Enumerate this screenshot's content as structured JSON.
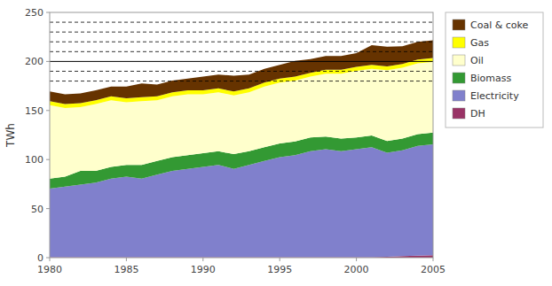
{
  "chart_data": {
    "type": "area",
    "stacked": true,
    "ylabel": "TWh",
    "x": [
      1980,
      1981,
      1982,
      1983,
      1984,
      1985,
      1986,
      1987,
      1988,
      1989,
      1990,
      1991,
      1992,
      1993,
      1994,
      1995,
      1996,
      1997,
      1998,
      1999,
      2000,
      2001,
      2002,
      2003,
      2004,
      2005
    ],
    "series": [
      {
        "name": "DH",
        "color": "#993366",
        "values": [
          0.5,
          0.5,
          0.5,
          0.5,
          0.5,
          0.5,
          0.5,
          0.5,
          0.5,
          0.5,
          0.5,
          0.5,
          0.5,
          0.5,
          0.5,
          0.5,
          0.5,
          0.5,
          0.5,
          0.5,
          0.5,
          0.5,
          1.0,
          1.5,
          2.0,
          2.5
        ]
      },
      {
        "name": "Electricity",
        "color": "#8080cc",
        "values": [
          70,
          72,
          74,
          76,
          80,
          82,
          80,
          84,
          88,
          90,
          92,
          94,
          90,
          94,
          98,
          102,
          104,
          108,
          110,
          108,
          110,
          112,
          106,
          108,
          112,
          113
        ]
      },
      {
        "name": "Biomass",
        "color": "#339933",
        "values": [
          10,
          10,
          14,
          12,
          12,
          12,
          14,
          14,
          14,
          14,
          14,
          14,
          15,
          14,
          14,
          14,
          14,
          14,
          13,
          13,
          12,
          12,
          12,
          12,
          12,
          12
        ]
      },
      {
        "name": "Oil",
        "color": "#ffffcc",
        "values": [
          75,
          70,
          65,
          68,
          68,
          64,
          65,
          62,
          62,
          62,
          60,
          60,
          60,
          60,
          62,
          62,
          62,
          62,
          64,
          66,
          68,
          68,
          72,
          72,
          72,
          72
        ]
      },
      {
        "name": "Gas",
        "color": "#ffff00",
        "values": [
          4,
          4,
          4,
          4,
          4,
          4,
          4,
          4,
          4,
          4,
          4,
          4,
          4,
          4,
          4,
          4,
          4,
          4,
          4,
          4,
          4,
          4,
          4,
          4,
          4,
          4
        ]
      },
      {
        "name": "Coal & coke",
        "color": "#663300",
        "values": [
          10,
          10,
          10,
          10,
          10,
          12,
          14,
          12,
          12,
          12,
          14,
          14,
          16,
          14,
          14,
          14,
          16,
          14,
          14,
          14,
          14,
          20,
          20,
          18,
          18,
          18
        ]
      }
    ],
    "xlim": [
      1980,
      2005
    ],
    "xticks": [
      1980,
      1985,
      1990,
      1995,
      2000,
      2005
    ],
    "ylim": [
      0,
      250
    ],
    "yticks": [
      0,
      50,
      100,
      150,
      200,
      250
    ],
    "reference_lines": [
      {
        "value": 180,
        "line_style": "dashed"
      },
      {
        "value": 190,
        "line_style": "dashed"
      },
      {
        "value": 210,
        "line_style": "dashed"
      },
      {
        "value": 220,
        "line_style": "dashed"
      },
      {
        "value": 230,
        "line_style": "dashed"
      },
      {
        "value": 240,
        "line_style": "dashed"
      },
      {
        "value": 200,
        "line_style": "solid"
      }
    ],
    "grid": false,
    "legend": "right"
  }
}
